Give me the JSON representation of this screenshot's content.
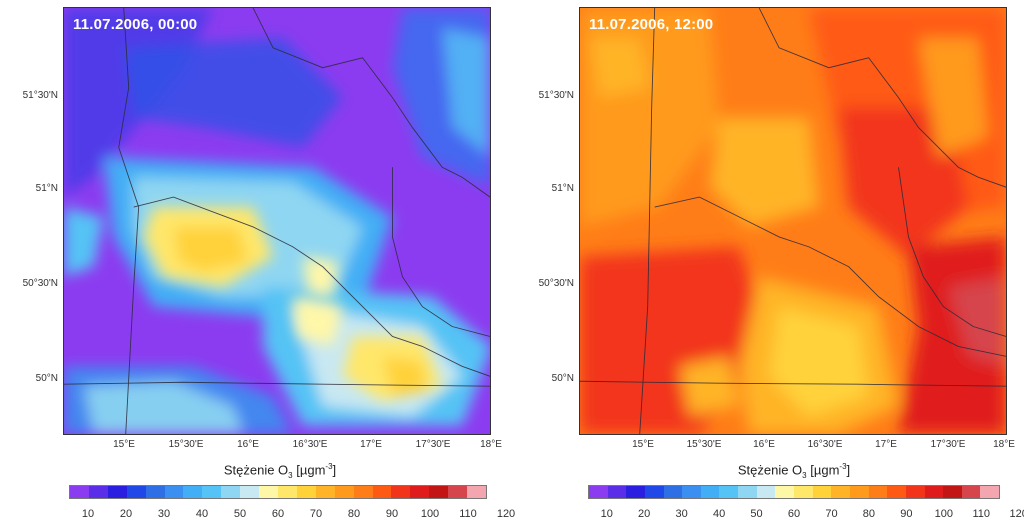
{
  "panels": [
    {
      "id": "left",
      "timestamp": "11.07.2006, 00:00",
      "base_color": "#8f3df0",
      "colorbar_title": {
        "prefix": "Stężenie O",
        "sub": "3",
        "bracket_open": " [µgm",
        "sup": "-3",
        "bracket_close": "]"
      },
      "lat_labels": [
        "51°30'N",
        "51°N",
        "50°30'N",
        "50°N"
      ],
      "lon_labels": [
        "15°E",
        "15°30'E",
        "16°E",
        "16°30'E",
        "17°E",
        "17°30'E",
        "18°E"
      ]
    },
    {
      "id": "right",
      "timestamp": "11.07.2006, 12:00",
      "base_color": "#f26a1f",
      "colorbar_title": {
        "prefix": "Stężenie O",
        "sub": "3",
        "bracket_open": " [µgm",
        "sup": "-3",
        "bracket_close": "]"
      },
      "lat_labels": [
        "51°30'N",
        "51°N",
        "50°30'N",
        "50°N"
      ],
      "lon_labels": [
        "15°E",
        "15°30'E",
        "16°E",
        "16°30'E",
        "17°E",
        "17°30'E",
        "18°E"
      ]
    }
  ],
  "colorbar": {
    "ticks": [
      "10",
      "20",
      "30",
      "40",
      "50",
      "60",
      "70",
      "80",
      "90",
      "100",
      "110",
      "120"
    ],
    "colors": [
      "#8c3cf0",
      "#5a2de8",
      "#2a1fe0",
      "#2048e8",
      "#2f6fe6",
      "#3a8ff0",
      "#42aef5",
      "#55c3f5",
      "#8fd6f2",
      "#c8e8f2",
      "#fff7a8",
      "#ffe76a",
      "#ffd23a",
      "#ffb428",
      "#ff9a1c",
      "#ff7d18",
      "#ff5a14",
      "#f2351a",
      "#e01b1b",
      "#c41515",
      "#d6444c",
      "#f4a6b0"
    ]
  }
}
